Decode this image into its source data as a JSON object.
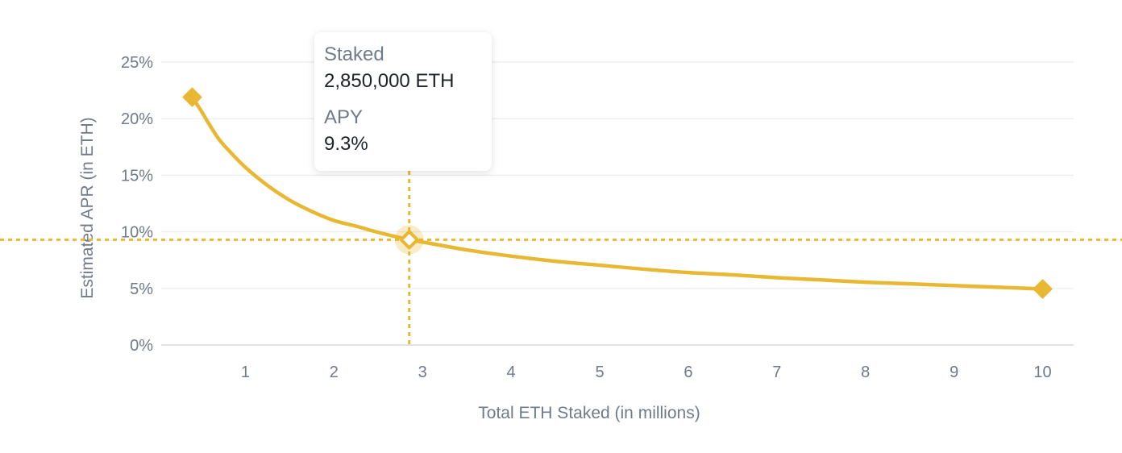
{
  "chart_data": {
    "type": "line",
    "xlabel": "Total ETH Staked (in millions)",
    "ylabel": "Estimated APR (in ETH)",
    "x_ticks": [
      1,
      2,
      3,
      4,
      5,
      6,
      7,
      8,
      9,
      10
    ],
    "y_ticks": [
      "0%",
      "5%",
      "10%",
      "15%",
      "20%",
      "25%"
    ],
    "xlim": [
      0.05,
      10.35
    ],
    "ylim": [
      0,
      25
    ],
    "grid": true,
    "legend": "none",
    "color": "#e8b832",
    "x": [
      0.4,
      0.5,
      0.6,
      0.7,
      0.8,
      1,
      1.25,
      1.5,
      1.75,
      2,
      2.25,
      2.5,
      2.85,
      3,
      3.5,
      4,
      4.5,
      5,
      5.5,
      6,
      6.5,
      7,
      7.5,
      8,
      8.5,
      9,
      9.5,
      10
    ],
    "y": [
      21.9,
      20.7,
      19.4,
      18.2,
      17.3,
      15.7,
      14.1,
      12.8,
      11.8,
      11.0,
      10.5,
      9.95,
      9.3,
      9.1,
      8.4,
      7.85,
      7.4,
      7.05,
      6.7,
      6.4,
      6.2,
      5.95,
      5.75,
      5.55,
      5.4,
      5.25,
      5.1,
      4.95
    ],
    "markers": [
      {
        "x": 0.4,
        "y": 21.9
      },
      {
        "x": 10,
        "y": 4.95
      }
    ],
    "highlight": {
      "x": 2.85,
      "y": 9.3
    }
  },
  "tooltip": {
    "staked_label": "Staked",
    "staked_value": "2,850,000 ETH",
    "apy_label": "APY",
    "apy_value": "9.3%"
  }
}
